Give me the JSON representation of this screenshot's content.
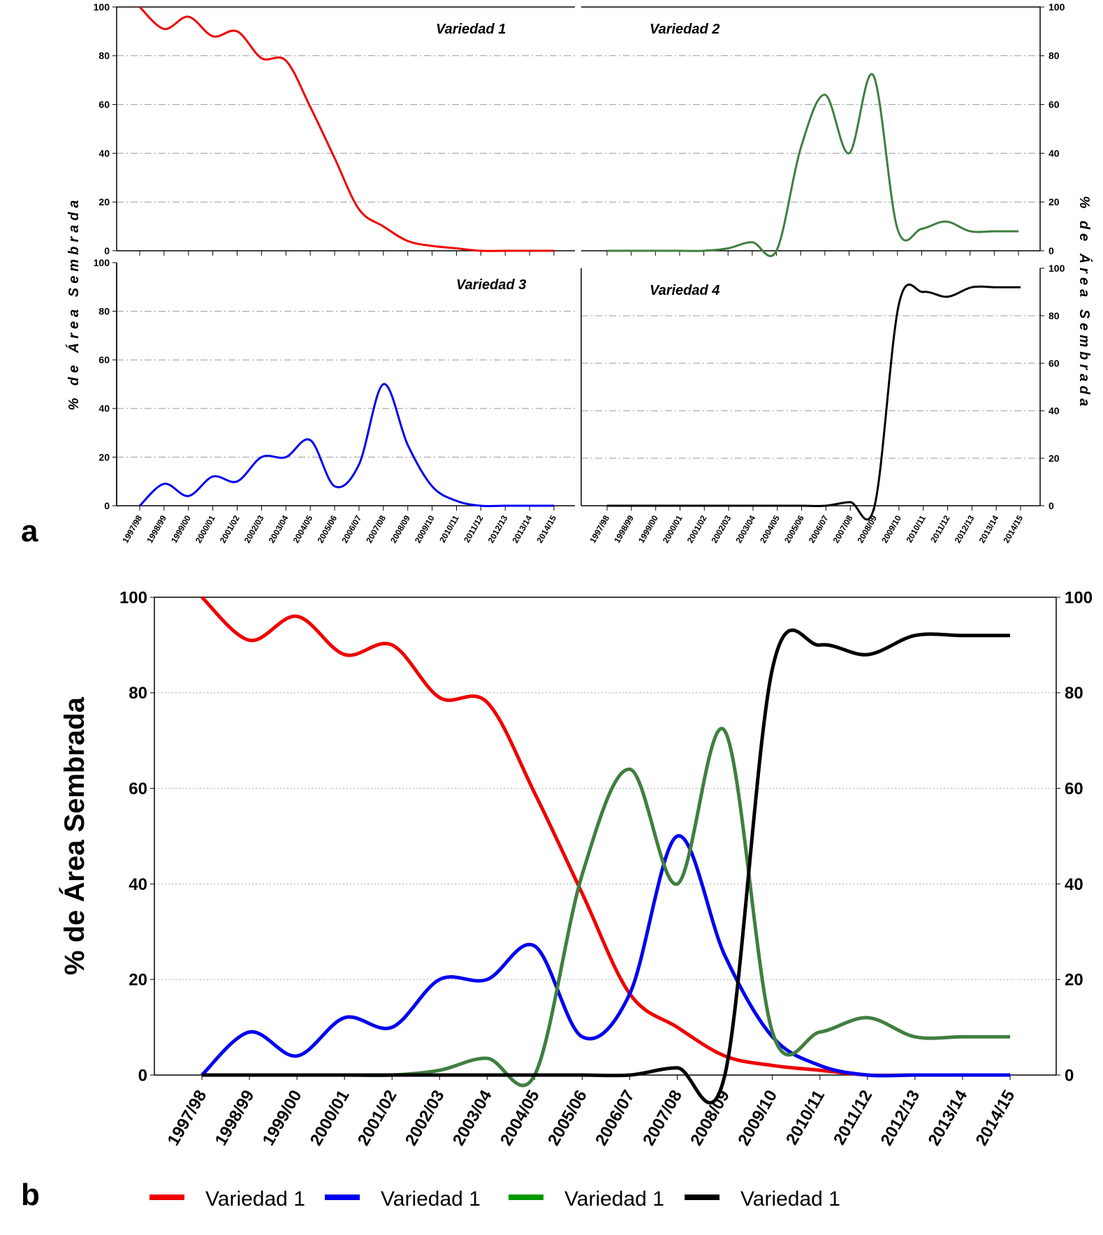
{
  "chart_data": {
    "type": "line",
    "panel_a_label": "a",
    "panel_b_label": "b",
    "ylabel": "% de Área Sembrada",
    "ylim": [
      0,
      100
    ],
    "yticks": [
      0,
      20,
      40,
      60,
      80,
      100
    ],
    "categories": [
      "1997/98",
      "1998/99",
      "1999/00",
      "2000/01",
      "2001/02",
      "2002/03",
      "2003/04",
      "2004/05",
      "2005/06",
      "2006/07",
      "2007/08",
      "2008/09",
      "2009/10",
      "2010/11",
      "2011/12",
      "2012/13",
      "2013/14",
      "2014/15"
    ],
    "series": [
      {
        "name": "Variedad 1",
        "panel_title": "Variedad 1",
        "legend": "Variedad 1",
        "color": "#ee0000",
        "legend_color": "#ee0000",
        "values": [
          100,
          91,
          96,
          88,
          90,
          79,
          78,
          59,
          38,
          17,
          10,
          4,
          2,
          1,
          0,
          0,
          0,
          0
        ]
      },
      {
        "name": "Variedad 3",
        "panel_title": "Variedad 3",
        "legend": "Variedad 1",
        "color": "#0000ee",
        "legend_color": "#0000ee",
        "values": [
          0,
          9,
          4,
          12,
          10,
          20,
          20,
          27,
          8,
          17,
          50,
          25,
          8,
          2,
          0,
          0,
          0,
          0
        ]
      },
      {
        "name": "Variedad 2",
        "panel_title": "Variedad 2",
        "legend": "Variedad 1",
        "color": "#3f7f3f",
        "legend_color": "#009900",
        "values": [
          0,
          0,
          0,
          0,
          0,
          1,
          3.5,
          0,
          42,
          64,
          40,
          72,
          9,
          9,
          12,
          8,
          8,
          8
        ]
      },
      {
        "name": "Variedad 4",
        "panel_title": "Variedad 4",
        "legend": "Variedad 1",
        "color": "#000000",
        "legend_color": "#000000",
        "values": [
          0,
          0,
          0,
          0,
          0,
          0,
          0,
          0,
          0,
          0,
          1.5,
          0,
          85,
          90,
          88,
          92,
          92,
          92
        ]
      }
    ],
    "grid": true,
    "legend_position": "bottom"
  }
}
